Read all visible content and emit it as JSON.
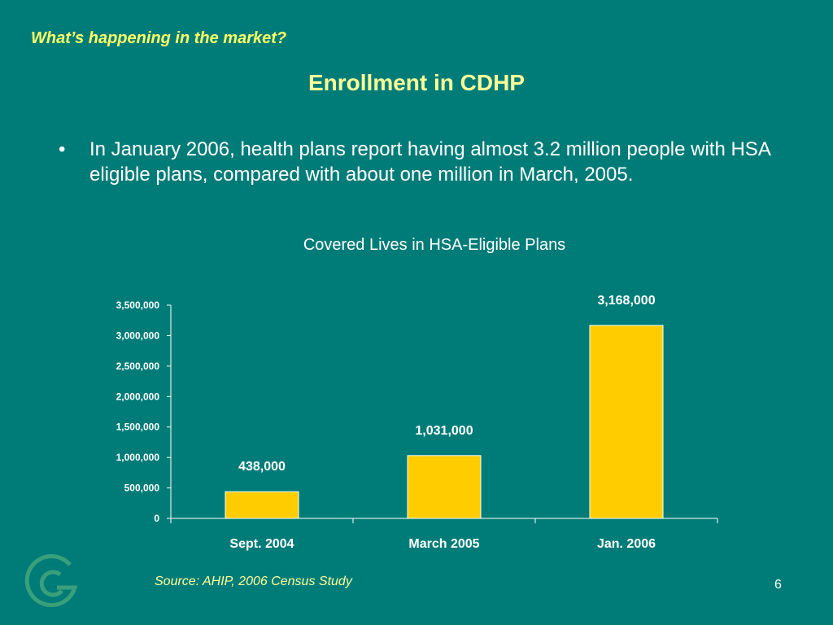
{
  "header": {
    "section_title": "What’s happening in the market?",
    "slide_title": "Enrollment in CDHP"
  },
  "body": {
    "bullet_symbol": "•",
    "bullet_text": "In January 2006, health plans report having almost 3.2 million people with HSA eligible plans, compared with about one million in March, 2005."
  },
  "chart_data": {
    "type": "bar",
    "title": "Covered Lives in HSA-Eligible Plans",
    "categories": [
      "Sept. 2004",
      "March 2005",
      "Jan. 2006"
    ],
    "values": [
      438000,
      1031000,
      3168000
    ],
    "value_labels": [
      "438,000",
      "1,031,000",
      "3,168,000"
    ],
    "y_ticks": [
      0,
      500000,
      1000000,
      1500000,
      2000000,
      2500000,
      3000000,
      3500000
    ],
    "y_tick_labels": [
      "0",
      "500,000",
      "1,000,000",
      "1,500,000",
      "2,000,000",
      "2,500,000",
      "3,000,000",
      "3,500,000"
    ],
    "ylim": [
      0,
      3500000
    ],
    "xlabel": "",
    "ylabel": "",
    "grid": false,
    "bar_color": "#ffcc00",
    "text_color": "#ffffff"
  },
  "footer": {
    "source": "Source:  AHIP, 2006 Census Study",
    "page_number": "6",
    "logo_color": "#3aa07a"
  }
}
